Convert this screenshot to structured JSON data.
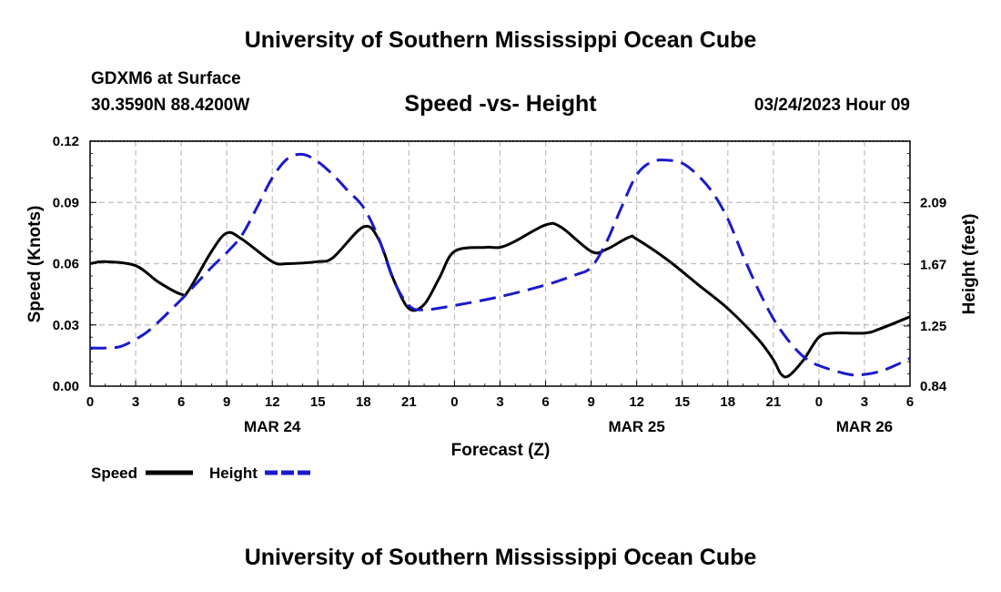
{
  "header": {
    "title": "University of Southern Mississippi Ocean Cube",
    "station": "GDXM6 at Surface",
    "coords": "30.3590N  88.4200W",
    "chart_title": "Speed -vs- Height",
    "datetime": "03/24/2023 Hour 09"
  },
  "footer": {
    "title": "University of Southern Mississippi Ocean Cube"
  },
  "chart_data": {
    "type": "line",
    "title": "Speed -vs- Height",
    "xlabel": "Forecast (Z)",
    "ylabel_left": "Speed (Knots)",
    "ylabel_right": "Height (feet)",
    "x_range_hours": [
      0,
      54
    ],
    "x_ticks": [
      {
        "hour": 0,
        "label": "0"
      },
      {
        "hour": 3,
        "label": "3"
      },
      {
        "hour": 6,
        "label": "6"
      },
      {
        "hour": 9,
        "label": "9"
      },
      {
        "hour": 12,
        "label": "12"
      },
      {
        "hour": 15,
        "label": "15"
      },
      {
        "hour": 18,
        "label": "18"
      },
      {
        "hour": 21,
        "label": "21"
      },
      {
        "hour": 24,
        "label": "0"
      },
      {
        "hour": 27,
        "label": "3"
      },
      {
        "hour": 30,
        "label": "6"
      },
      {
        "hour": 33,
        "label": "9"
      },
      {
        "hour": 36,
        "label": "12"
      },
      {
        "hour": 39,
        "label": "15"
      },
      {
        "hour": 42,
        "label": "18"
      },
      {
        "hour": 45,
        "label": "21"
      },
      {
        "hour": 48,
        "label": "0"
      },
      {
        "hour": 51,
        "label": "3"
      },
      {
        "hour": 54,
        "label": "6"
      }
    ],
    "date_labels": [
      {
        "hour": 12,
        "label": "MAR 24"
      },
      {
        "hour": 36,
        "label": "MAR 25"
      },
      {
        "hour": 51,
        "label": "MAR 26"
      }
    ],
    "y_left": {
      "range": [
        0,
        0.12
      ],
      "ticks": [
        "0.00",
        "0.03",
        "0.06",
        "0.09",
        "0.12"
      ]
    },
    "y_right": {
      "range": [
        0.84,
        2.51
      ],
      "ticks": [
        "0.84",
        "1.25",
        "1.67",
        "2.09"
      ]
    },
    "legend": [
      {
        "name": "Speed",
        "color": "#000000",
        "style": "solid"
      },
      {
        "name": "Height",
        "color": "#1a1acc",
        "style": "dashed"
      }
    ],
    "series": [
      {
        "name": "Speed",
        "units": "Knots",
        "axis": "left",
        "color": "#000000",
        "x": [
          0,
          1,
          3,
          4.5,
          6,
          6.5,
          8,
          9,
          10,
          12,
          13,
          15,
          16,
          18,
          19,
          20,
          21,
          22,
          23,
          24,
          26,
          27,
          28,
          30,
          31,
          33,
          34,
          35.5,
          36,
          38,
          40,
          42,
          44,
          45,
          45.5,
          46,
          47,
          48,
          49,
          51,
          52,
          54
        ],
        "values": [
          0.06,
          0.061,
          0.059,
          0.051,
          0.045,
          0.047,
          0.066,
          0.075,
          0.072,
          0.061,
          0.06,
          0.061,
          0.063,
          0.078,
          0.072,
          0.052,
          0.038,
          0.04,
          0.053,
          0.066,
          0.068,
          0.068,
          0.071,
          0.079,
          0.078,
          0.066,
          0.067,
          0.073,
          0.072,
          0.062,
          0.05,
          0.038,
          0.023,
          0.013,
          0.006,
          0.005,
          0.013,
          0.024,
          0.026,
          0.026,
          0.028,
          0.034
        ]
      },
      {
        "name": "Height",
        "units": "feet",
        "axis": "right",
        "color": "#1a1acc",
        "x": [
          0,
          1,
          2,
          3,
          4,
          6,
          8,
          9,
          10,
          11,
          12,
          13,
          14,
          15,
          16,
          17,
          18,
          19,
          20,
          21,
          22,
          24,
          27,
          30,
          32,
          33,
          34,
          35,
          36,
          37,
          38,
          39,
          40,
          41,
          42,
          43,
          44,
          45,
          46,
          47,
          48,
          50,
          51,
          52,
          53,
          54
        ],
        "values": [
          1.1,
          1.1,
          1.11,
          1.16,
          1.23,
          1.43,
          1.65,
          1.75,
          1.87,
          2.06,
          2.26,
          2.39,
          2.42,
          2.37,
          2.28,
          2.17,
          2.06,
          1.85,
          1.56,
          1.39,
          1.36,
          1.39,
          1.45,
          1.53,
          1.6,
          1.65,
          1.82,
          2.06,
          2.28,
          2.37,
          2.38,
          2.36,
          2.28,
          2.16,
          1.98,
          1.73,
          1.5,
          1.3,
          1.15,
          1.04,
          0.98,
          0.92,
          0.92,
          0.94,
          0.98,
          1.03
        ]
      }
    ]
  }
}
